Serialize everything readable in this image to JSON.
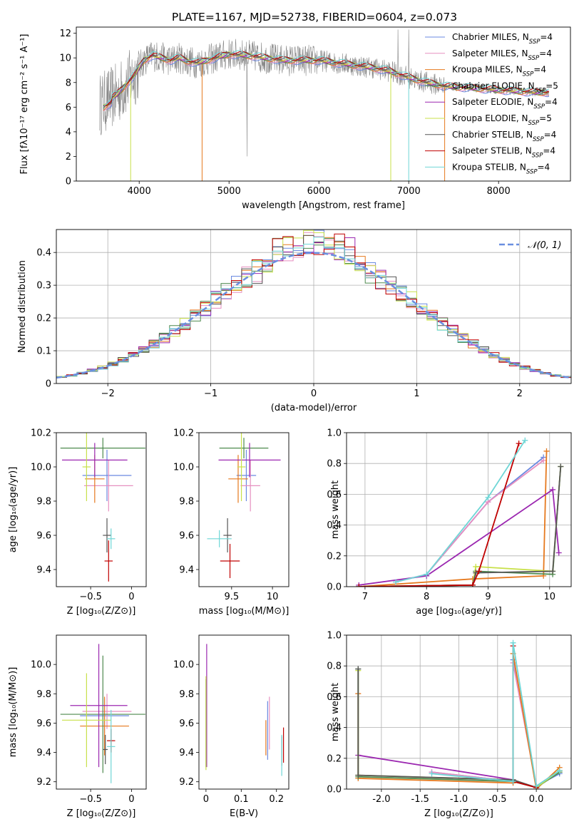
{
  "figure": {
    "title": "PLATE=1167, MJD=52738, FIBERID=0604, z=0.073"
  },
  "colors": {
    "series": [
      "#6a89e0",
      "#e68fc0",
      "#e6791e",
      "#4e8a4e",
      "#9b27b0",
      "#c8e04a",
      "#555555",
      "#c00000",
      "#6fd6d6"
    ],
    "data": "#888888",
    "normal": "#6a8fe0",
    "grid": "#b0b0b0"
  },
  "chart_data": [
    {
      "id": "spectrum",
      "type": "line",
      "title": "PLATE=1167, MJD=52738, FIBERID=0604, z=0.073",
      "xlabel": "wavelength [Angstrom, rest frame]",
      "ylabel": "Flux [fλ10⁻¹⁷ erg cm⁻² s⁻¹ A⁻¹]",
      "xlim": [
        3300,
        8800
      ],
      "ylim": [
        0,
        12.5
      ],
      "xticks": [
        4000,
        5000,
        6000,
        7000,
        8000
      ],
      "yticks": [
        0,
        2,
        4,
        6,
        8,
        10,
        12
      ],
      "grid": false,
      "legend_position": "upper-right",
      "legend": [
        {
          "name": "Chabrier MILES, N",
          "sub": "SSP",
          "tail": "=4"
        },
        {
          "name": "Salpeter MILES, N",
          "sub": "SSP",
          "tail": "=4"
        },
        {
          "name": "Kroupa MILES, N",
          "sub": "SSP",
          "tail": "=4"
        },
        {
          "name": "Chabrier ELODIE, N",
          "sub": "SSP",
          "tail": "=5"
        },
        {
          "name": "Salpeter ELODIE, N",
          "sub": "SSP",
          "tail": "=4"
        },
        {
          "name": "Kroupa ELODIE, N",
          "sub": "SSP",
          "tail": "=5"
        },
        {
          "name": "Chabrier STELIB, N",
          "sub": "SSP",
          "tail": "=4"
        },
        {
          "name": "Salpeter STELIB, N",
          "sub": "SSP",
          "tail": "=4"
        },
        {
          "name": "Kroupa STELIB, N",
          "sub": "SSP",
          "tail": "=4"
        }
      ],
      "data_trend": {
        "x": [
          3560,
          3650,
          3750,
          3850,
          3950,
          4050,
          4150,
          4250,
          4350,
          4450,
          4550,
          4650,
          4800,
          5000,
          5200,
          5400,
          5600,
          5800,
          6000,
          6200,
          6400,
          6600,
          6800,
          7000,
          7200,
          7400,
          7600,
          7800,
          8000,
          8200,
          8400,
          8800
        ],
        "y": [
          6.2,
          6.6,
          7.0,
          7.8,
          8.6,
          9.8,
          10.2,
          10.0,
          9.8,
          10.0,
          9.7,
          9.6,
          9.9,
          10.3,
          10.2,
          10.0,
          9.8,
          9.8,
          9.8,
          9.6,
          9.4,
          9.2,
          8.9,
          8.4,
          8.0,
          7.7,
          7.6,
          7.5,
          7.4,
          7.3,
          7.2,
          7.2
        ]
      },
      "model_spikes": [
        {
          "x": 3905,
          "series": 5
        },
        {
          "x": 4700,
          "series": 2
        },
        {
          "x": 6800,
          "series": 5
        },
        {
          "x": 7000,
          "series": 8
        },
        {
          "x": 7400,
          "series": 2
        }
      ]
    },
    {
      "id": "residuals",
      "type": "histogram",
      "xlabel": "(data-model)/error",
      "ylabel": "Normed distribution",
      "xlim": [
        -2.5,
        2.5
      ],
      "ylim": [
        0,
        0.47
      ],
      "xticks": [
        -2,
        -1,
        0,
        1,
        2
      ],
      "yticks": [
        0.0,
        0.1,
        0.2,
        0.3,
        0.4
      ],
      "grid": true,
      "legend": [
        {
          "name": "𝒩(0, 1)"
        }
      ],
      "bins": 50,
      "envelope_peak": 0.4
    },
    {
      "id": "age-vs-z",
      "type": "scatter",
      "xlabel": "Z [log₁₀(Z/Z⊙)]",
      "ylabel": "age  [log₁₀(age/yr)]",
      "xlim": [
        -0.92,
        0.18
      ],
      "ylim": [
        9.3,
        10.2
      ],
      "xticks": [
        -0.5,
        0.0
      ],
      "yticks": [
        9.4,
        9.6,
        9.8,
        10.0,
        10.2
      ],
      "points": [
        {
          "x": -0.3,
          "y": 9.95,
          "xerr": 0.3,
          "yerr": 0.15
        },
        {
          "x": -0.28,
          "y": 9.89,
          "xerr": 0.3,
          "yerr": 0.15
        },
        {
          "x": -0.45,
          "y": 9.93,
          "xerr": 0.12,
          "yerr": 0.14
        },
        {
          "x": -0.35,
          "y": 10.11,
          "xerr": 0.52,
          "yerr": 0.06
        },
        {
          "x": -0.45,
          "y": 10.04,
          "xerr": 0.4,
          "yerr": 0.1
        },
        {
          "x": -0.55,
          "y": 10.0,
          "xerr": 0.05,
          "yerr": 0.2
        },
        {
          "x": -0.3,
          "y": 9.6,
          "xerr": 0.05,
          "yerr": 0.1
        },
        {
          "x": -0.28,
          "y": 9.45,
          "xerr": 0.05,
          "yerr": 0.12
        },
        {
          "x": -0.25,
          "y": 9.58,
          "xerr": 0.05,
          "yerr": 0.06
        }
      ]
    },
    {
      "id": "age-vs-mass",
      "type": "scatter",
      "xlabel": "mass [log₁₀(M/M⊙)]",
      "ylabel": "",
      "xlim": [
        9.1,
        10.2
      ],
      "ylim": [
        9.3,
        10.2
      ],
      "xticks": [
        9.5,
        10.0
      ],
      "yticks": [
        9.4,
        9.6,
        9.8,
        10.0,
        10.2
      ],
      "points": [
        {
          "x": 9.68,
          "y": 9.95,
          "xerr": 0.12,
          "yerr": 0.15
        },
        {
          "x": 9.73,
          "y": 9.89,
          "xerr": 0.12,
          "yerr": 0.15
        },
        {
          "x": 9.58,
          "y": 9.93,
          "xerr": 0.12,
          "yerr": 0.14
        },
        {
          "x": 9.65,
          "y": 10.11,
          "xerr": 0.3,
          "yerr": 0.06
        },
        {
          "x": 9.72,
          "y": 10.04,
          "xerr": 0.38,
          "yerr": 0.1
        },
        {
          "x": 9.62,
          "y": 10.0,
          "xerr": 0.05,
          "yerr": 0.2
        },
        {
          "x": 9.45,
          "y": 9.6,
          "xerr": 0.05,
          "yerr": 0.1
        },
        {
          "x": 9.48,
          "y": 9.45,
          "xerr": 0.12,
          "yerr": 0.1
        },
        {
          "x": 9.35,
          "y": 9.58,
          "xerr": 0.15,
          "yerr": 0.05
        }
      ]
    },
    {
      "id": "weight-vs-age",
      "type": "line",
      "xlabel": "age  [log₁₀(age/yr)]",
      "ylabel": "mass weight",
      "xlim": [
        6.7,
        10.35
      ],
      "ylim": [
        0,
        1.0
      ],
      "xticks": [
        7,
        8,
        9,
        10
      ],
      "yticks": [
        0.0,
        0.2,
        0.4,
        0.6,
        0.8,
        1.0
      ],
      "grid": true,
      "series": [
        {
          "x": [
            7.5,
            8.0,
            9.0,
            9.9
          ],
          "y": [
            0.03,
            0.08,
            0.55,
            0.84
          ]
        },
        {
          "x": [
            7.5,
            8.0,
            9.0,
            9.9
          ],
          "y": [
            0.03,
            0.08,
            0.55,
            0.82
          ]
        },
        {
          "x": [
            6.9,
            8.75,
            9.9,
            9.95
          ],
          "y": [
            0.0,
            0.05,
            0.07,
            0.88
          ]
        },
        {
          "x": [
            6.9,
            8.75,
            8.8,
            10.05,
            10.18
          ],
          "y": [
            0.0,
            0.01,
            0.1,
            0.08,
            0.78
          ]
        },
        {
          "x": [
            6.9,
            8.0,
            10.05,
            10.15
          ],
          "y": [
            0.01,
            0.07,
            0.63,
            0.22
          ]
        },
        {
          "x": [
            6.9,
            8.75,
            8.8,
            10.05,
            10.18
          ],
          "y": [
            0.0,
            0.01,
            0.13,
            0.1,
            0.78
          ]
        },
        {
          "x": [
            6.9,
            8.75,
            8.8,
            10.05,
            10.18
          ],
          "y": [
            0.0,
            0.01,
            0.09,
            0.1,
            0.78
          ]
        },
        {
          "x": [
            6.9,
            8.75,
            8.85,
            9.5
          ],
          "y": [
            0.0,
            0.01,
            0.1,
            0.93
          ]
        },
        {
          "x": [
            7.5,
            8.0,
            9.0,
            9.6
          ],
          "y": [
            0.03,
            0.08,
            0.58,
            0.95
          ]
        }
      ]
    },
    {
      "id": "mass-vs-z",
      "type": "scatter",
      "xlabel": "Z [log₁₀(Z/Z⊙)]",
      "ylabel": "mass [log₁₀(M/M⊙)]",
      "xlim": [
        -0.92,
        0.18
      ],
      "ylim": [
        9.15,
        10.2
      ],
      "xticks": [
        -0.5,
        0.0
      ],
      "yticks": [
        9.2,
        9.4,
        9.6,
        9.8,
        10.0
      ],
      "points": [
        {
          "x": -0.33,
          "y": 9.65,
          "xerr": 0.3,
          "yerr": 0.12
        },
        {
          "x": -0.3,
          "y": 9.68,
          "xerr": 0.3,
          "yerr": 0.12
        },
        {
          "x": -0.33,
          "y": 9.58,
          "xerr": 0.3,
          "yerr": 0.2
        },
        {
          "x": -0.35,
          "y": 9.66,
          "xerr": 0.52,
          "yerr": 0.4
        },
        {
          "x": -0.4,
          "y": 9.72,
          "xerr": 0.35,
          "yerr": 0.42
        },
        {
          "x": -0.55,
          "y": 9.62,
          "xerr": 0.3,
          "yerr": 0.32
        },
        {
          "x": -0.32,
          "y": 9.42,
          "xerr": 0.03,
          "yerr": 0.1
        },
        {
          "x": -0.25,
          "y": 9.48,
          "xerr": 0.05,
          "yerr": 0.08
        },
        {
          "x": -0.25,
          "y": 9.44,
          "xerr": 0.05,
          "yerr": 0.25
        }
      ]
    },
    {
      "id": "mass-vs-ebv",
      "type": "scatter",
      "xlabel": "E(B-V)",
      "ylabel": "",
      "xlim": [
        -0.02,
        0.235
      ],
      "ylim": [
        9.15,
        10.2
      ],
      "xticks": [
        0.0,
        0.1,
        0.2
      ],
      "yticks": [
        9.2,
        9.4,
        9.6,
        9.8,
        10.0
      ],
      "points": [
        {
          "x": 0.175,
          "y": 9.55,
          "xerr": 0,
          "yerr": 0.2
        },
        {
          "x": 0.18,
          "y": 9.6,
          "xerr": 0,
          "yerr": 0.18
        },
        {
          "x": 0.17,
          "y": 9.5,
          "xerr": 0,
          "yerr": 0.12
        },
        {
          "x": 0.0,
          "y": 9.6,
          "xerr": 0,
          "yerr": 0.3
        },
        {
          "x": 0.002,
          "y": 9.72,
          "xerr": 0,
          "yerr": 0.42
        },
        {
          "x": 0.0,
          "y": 9.6,
          "xerr": 0,
          "yerr": 0.32
        },
        {
          "x": 0.215,
          "y": 9.41,
          "xerr": 0,
          "yerr": 0.1
        },
        {
          "x": 0.22,
          "y": 9.45,
          "xerr": 0,
          "yerr": 0.12
        },
        {
          "x": 0.215,
          "y": 9.38,
          "xerr": 0,
          "yerr": 0.14
        }
      ]
    },
    {
      "id": "weight-vs-z",
      "type": "line",
      "xlabel": "Z [log₁₀(Z/Z⊙)]",
      "ylabel": "mass weight",
      "xlim": [
        -2.45,
        0.45
      ],
      "ylim": [
        0,
        1.0
      ],
      "xticks": [
        -2.0,
        -1.5,
        -1.0,
        -0.5,
        0.0
      ],
      "yticks": [
        0.0,
        0.2,
        0.4,
        0.6,
        0.8,
        1.0
      ],
      "grid": true,
      "series": [
        {
          "x": [
            -1.35,
            -0.3,
            -0.3,
            0.0,
            0.3
          ],
          "y": [
            0.11,
            0.05,
            0.84,
            0.02,
            0.1
          ]
        },
        {
          "x": [
            -1.35,
            -0.3,
            -0.3,
            0.0,
            0.3
          ],
          "y": [
            0.11,
            0.05,
            0.82,
            0.02,
            0.12
          ]
        },
        {
          "x": [
            -2.3,
            -2.3,
            -0.3,
            -0.3,
            0.0,
            0.3
          ],
          "y": [
            0.62,
            0.07,
            0.04,
            0.88,
            0.0,
            0.14
          ]
        },
        {
          "x": [
            -2.3,
            -2.3,
            -0.3,
            0.0,
            0.3
          ],
          "y": [
            0.78,
            0.08,
            0.05,
            0.01,
            0.11
          ]
        },
        {
          "x": [
            -2.3,
            -0.3,
            0.0
          ],
          "y": [
            0.22,
            0.06,
            0.01
          ]
        },
        {
          "x": [
            -2.3,
            -2.3,
            -0.3,
            0.0,
            0.3
          ],
          "y": [
            0.77,
            0.09,
            0.06,
            0.01,
            0.12
          ]
        },
        {
          "x": [
            -2.3,
            -2.3,
            -0.3,
            0.0
          ],
          "y": [
            0.78,
            0.09,
            0.06,
            0.01
          ]
        },
        {
          "x": [
            -0.3,
            -0.3,
            0.0
          ],
          "y": [
            0.93,
            0.05,
            0.01
          ]
        },
        {
          "x": [
            -1.35,
            -0.3,
            -0.3,
            0.0,
            0.3
          ],
          "y": [
            0.1,
            0.05,
            0.95,
            0.02,
            0.12
          ]
        }
      ]
    }
  ]
}
